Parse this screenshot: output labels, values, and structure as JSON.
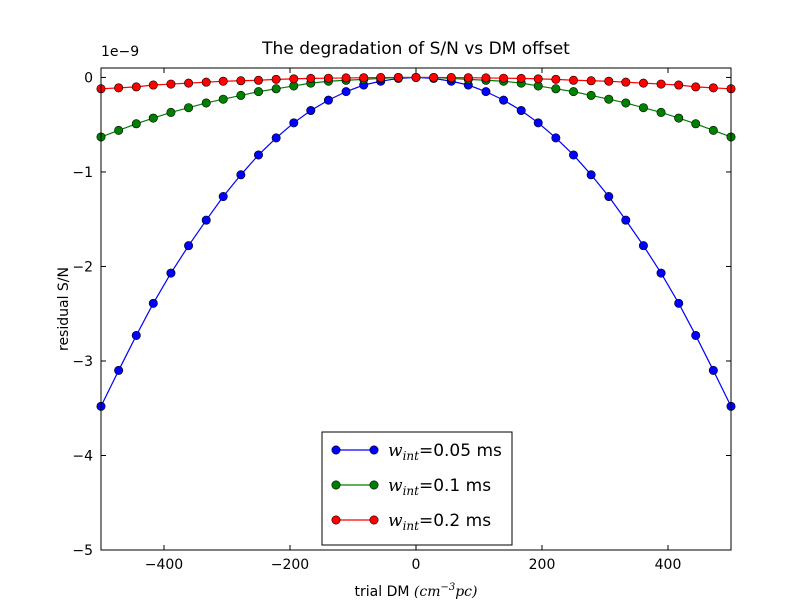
{
  "chart_data": {
    "type": "line",
    "title": "The degradation of S/N vs DM offset",
    "xlabel_text": "trial DM ",
    "xlabel_math": "(cm",
    "xlabel_math_sup": "−3",
    "xlabel_math_end": "pc)",
    "ylabel": "residual S/N",
    "y_scale_label": "1e−9",
    "y_multiplier": 1e-09,
    "xlim": [
      -500,
      500
    ],
    "ylim": [
      -5,
      0.1
    ],
    "xticks": [
      -400,
      -200,
      0,
      200,
      400
    ],
    "xtick_labels": [
      "−400",
      "−200",
      "0",
      "200",
      "400"
    ],
    "yticks": [
      0,
      -1,
      -2,
      -3,
      -4,
      -5
    ],
    "ytick_labels": [
      "0",
      "−1",
      "−2",
      "−3",
      "−4",
      "−5"
    ],
    "x": [
      -500,
      -472,
      -444,
      -417,
      -389,
      -361,
      -333,
      -306,
      -278,
      -250,
      -222,
      -194,
      -167,
      -139,
      -111,
      -83,
      -56,
      -28,
      0,
      28,
      56,
      83,
      111,
      139,
      167,
      194,
      222,
      250,
      278,
      306,
      333,
      361,
      389,
      417,
      444,
      472,
      500
    ],
    "series": [
      {
        "name": "=0.05 ms",
        "label_math": "w",
        "label_sub": "int",
        "color": "#0000ff",
        "values": [
          -3.48,
          -3.1,
          -2.73,
          -2.39,
          -2.07,
          -1.78,
          -1.51,
          -1.26,
          -1.03,
          -0.82,
          -0.64,
          -0.48,
          -0.35,
          -0.24,
          -0.15,
          -0.08,
          -0.04,
          -0.01,
          0.0,
          -0.01,
          -0.04,
          -0.08,
          -0.15,
          -0.24,
          -0.35,
          -0.48,
          -0.64,
          -0.82,
          -1.03,
          -1.26,
          -1.51,
          -1.78,
          -2.07,
          -2.39,
          -2.73,
          -3.1,
          -3.48
        ]
      },
      {
        "name": "=0.1 ms",
        "label_math": "w",
        "label_sub": "int",
        "color": "#008000",
        "values": [
          -0.63,
          -0.56,
          -0.49,
          -0.43,
          -0.37,
          -0.32,
          -0.27,
          -0.23,
          -0.19,
          -0.15,
          -0.12,
          -0.09,
          -0.06,
          -0.04,
          -0.03,
          -0.02,
          -0.01,
          0.0,
          0.0,
          0.0,
          -0.01,
          -0.02,
          -0.03,
          -0.04,
          -0.06,
          -0.09,
          -0.12,
          -0.15,
          -0.19,
          -0.23,
          -0.27,
          -0.32,
          -0.37,
          -0.43,
          -0.49,
          -0.56,
          -0.63
        ]
      },
      {
        "name": "=0.2 ms",
        "label_math": "w",
        "label_sub": "int",
        "color": "#ff0000",
        "values": [
          -0.12,
          -0.11,
          -0.1,
          -0.08,
          -0.07,
          -0.06,
          -0.05,
          -0.04,
          -0.035,
          -0.03,
          -0.02,
          -0.015,
          -0.01,
          -0.008,
          -0.005,
          -0.003,
          -0.001,
          0.0,
          0.0,
          0.0,
          -0.001,
          -0.003,
          -0.005,
          -0.008,
          -0.01,
          -0.015,
          -0.02,
          -0.03,
          -0.035,
          -0.04,
          -0.05,
          -0.06,
          -0.07,
          -0.08,
          -0.1,
          -0.11,
          -0.12
        ]
      }
    ],
    "legend_position": "lower-center",
    "grid": false
  }
}
